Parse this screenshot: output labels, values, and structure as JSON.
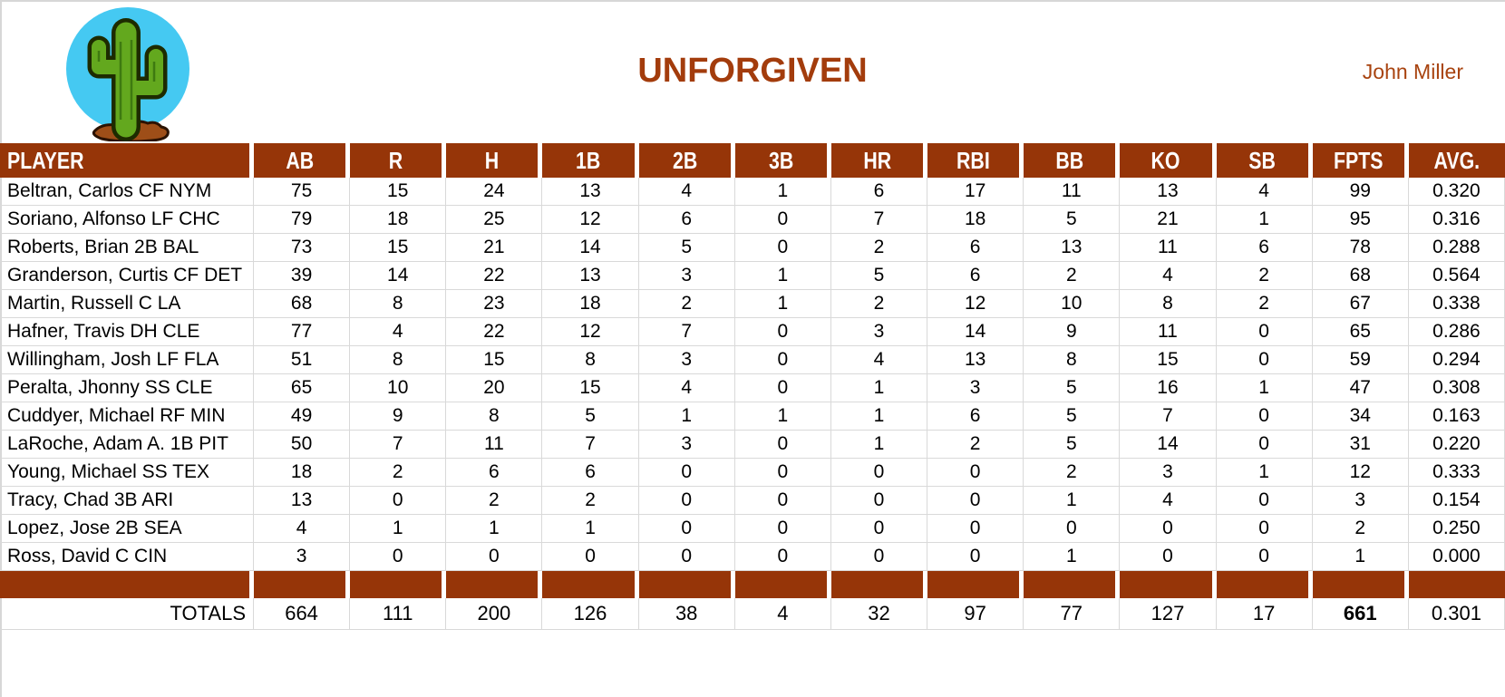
{
  "header": {
    "title": "UNFORGIVEN",
    "owner": "John Miller",
    "logo": "cactus-logo"
  },
  "colors": {
    "brand": "#A33C0C",
    "table-header-bg": "#963508",
    "grid-line": "#D9D9D9",
    "owner-text": "#A8430F",
    "logo-sky": "#45C9F2",
    "cactus-green": "#63A81E",
    "soil-brown": "#9E4E18"
  },
  "table": {
    "columns": [
      "PLAYER",
      "AB",
      "R",
      "H",
      "1B",
      "2B",
      "3B",
      "HR",
      "RBI",
      "BB",
      "KO",
      "SB",
      "FPTS",
      "AVG."
    ],
    "rows": [
      {
        "player": "Beltran, Carlos CF NYM",
        "stats": [
          "75",
          "15",
          "24",
          "13",
          "4",
          "1",
          "6",
          "17",
          "11",
          "13",
          "4",
          "99",
          "0.320"
        ]
      },
      {
        "player": "Soriano, Alfonso LF CHC",
        "stats": [
          "79",
          "18",
          "25",
          "12",
          "6",
          "0",
          "7",
          "18",
          "5",
          "21",
          "1",
          "95",
          "0.316"
        ]
      },
      {
        "player": "Roberts, Brian 2B BAL",
        "stats": [
          "73",
          "15",
          "21",
          "14",
          "5",
          "0",
          "2",
          "6",
          "13",
          "11",
          "6",
          "78",
          "0.288"
        ]
      },
      {
        "player": "Granderson, Curtis CF DET",
        "stats": [
          "39",
          "14",
          "22",
          "13",
          "3",
          "1",
          "5",
          "6",
          "2",
          "4",
          "2",
          "68",
          "0.564"
        ]
      },
      {
        "player": "Martin, Russell C LA",
        "stats": [
          "68",
          "8",
          "23",
          "18",
          "2",
          "1",
          "2",
          "12",
          "10",
          "8",
          "2",
          "67",
          "0.338"
        ]
      },
      {
        "player": "Hafner, Travis DH CLE",
        "stats": [
          "77",
          "4",
          "22",
          "12",
          "7",
          "0",
          "3",
          "14",
          "9",
          "11",
          "0",
          "65",
          "0.286"
        ]
      },
      {
        "player": "Willingham, Josh LF FLA",
        "stats": [
          "51",
          "8",
          "15",
          "8",
          "3",
          "0",
          "4",
          "13",
          "8",
          "15",
          "0",
          "59",
          "0.294"
        ]
      },
      {
        "player": "Peralta, Jhonny SS CLE",
        "stats": [
          "65",
          "10",
          "20",
          "15",
          "4",
          "0",
          "1",
          "3",
          "5",
          "16",
          "1",
          "47",
          "0.308"
        ]
      },
      {
        "player": "Cuddyer, Michael RF MIN",
        "stats": [
          "49",
          "9",
          "8",
          "5",
          "1",
          "1",
          "1",
          "6",
          "5",
          "7",
          "0",
          "34",
          "0.163"
        ]
      },
      {
        "player": "LaRoche, Adam A. 1B PIT",
        "stats": [
          "50",
          "7",
          "11",
          "7",
          "3",
          "0",
          "1",
          "2",
          "5",
          "14",
          "0",
          "31",
          "0.220"
        ]
      },
      {
        "player": "Young, Michael SS TEX",
        "stats": [
          "18",
          "2",
          "6",
          "6",
          "0",
          "0",
          "0",
          "0",
          "2",
          "3",
          "1",
          "12",
          "0.333"
        ]
      },
      {
        "player": "Tracy, Chad 3B ARI",
        "stats": [
          "13",
          "0",
          "2",
          "2",
          "0",
          "0",
          "0",
          "0",
          "1",
          "4",
          "0",
          "3",
          "0.154"
        ]
      },
      {
        "player": "Lopez, Jose 2B SEA",
        "stats": [
          "4",
          "1",
          "1",
          "1",
          "0",
          "0",
          "0",
          "0",
          "0",
          "0",
          "0",
          "2",
          "0.250"
        ]
      },
      {
        "player": "Ross, David C CIN",
        "stats": [
          "3",
          "0",
          "0",
          "0",
          "0",
          "0",
          "0",
          "0",
          "1",
          "0",
          "0",
          "1",
          "0.000"
        ]
      }
    ],
    "totals": {
      "label": "TOTALS",
      "stats": [
        "664",
        "111",
        "200",
        "126",
        "38",
        "4",
        "32",
        "97",
        "77",
        "127",
        "17",
        "661",
        "0.301"
      ],
      "bold_index": 11
    }
  }
}
